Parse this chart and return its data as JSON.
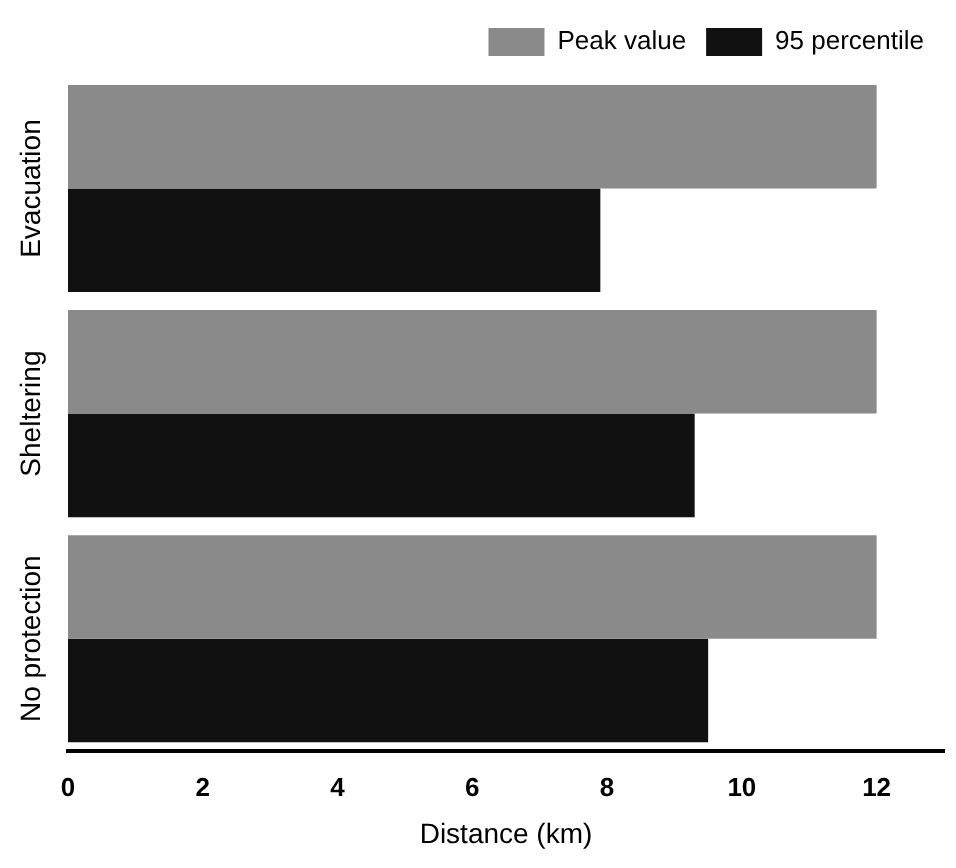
{
  "chart_data": {
    "type": "bar",
    "orientation": "horizontal",
    "xlabel": "Distance (km)",
    "categories": [
      "Evacuation",
      "Sheltering",
      "No protection"
    ],
    "series": [
      {
        "name": "Peak value",
        "color": "#8a8a8a",
        "values": [
          12,
          12,
          12
        ]
      },
      {
        "name": "95 percentile",
        "color": "#111111",
        "values": [
          7.9,
          9.3,
          9.5
        ]
      }
    ],
    "xlim": [
      0,
      13
    ],
    "xticks": [
      0,
      2,
      4,
      6,
      8,
      10,
      12
    ],
    "legend": "top right"
  }
}
